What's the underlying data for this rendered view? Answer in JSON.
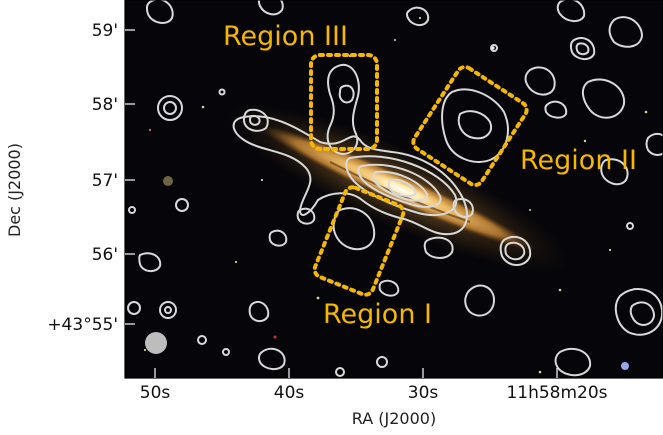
{
  "figure": {
    "xlabel": "RA (J2000)",
    "ylabel": "Dec (J2000)",
    "x_ticks": [
      "50s",
      "40s",
      "30s",
      "11h58m20s"
    ],
    "y_ticks": [
      "59'",
      "58'",
      "57'",
      "56'",
      "+43°55'"
    ],
    "regions": [
      {
        "label": "Region I"
      },
      {
        "label": "Region II"
      },
      {
        "label": "Region III"
      }
    ],
    "colors": {
      "background": "#05050a",
      "contour": "#d9d9d9",
      "region_box": "#f5b700",
      "region_text": "#f5b700",
      "galaxy_core": "#ffe9b0",
      "galaxy_disk": "#d89a3c",
      "beam": "#bdbdbd"
    }
  }
}
